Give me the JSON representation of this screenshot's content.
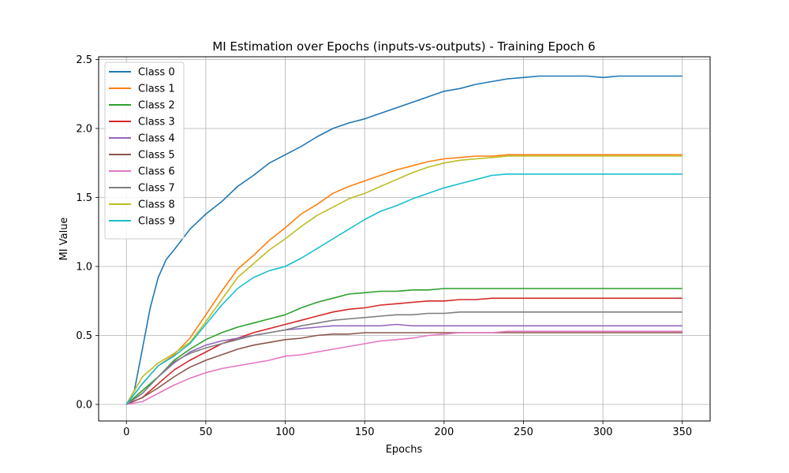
{
  "chart_data": {
    "type": "line",
    "title": "MI Estimation over Epochs (inputs-vs-outputs) - Training Epoch 6",
    "xlabel": "Epochs",
    "ylabel": "MI Value",
    "xlim": [
      -17.5,
      367.5
    ],
    "ylim": [
      -0.12,
      2.52
    ],
    "xticks": [
      0,
      50,
      100,
      150,
      200,
      250,
      300,
      350
    ],
    "yticks": [
      0.0,
      0.5,
      1.0,
      1.5,
      2.0,
      2.5
    ],
    "xtick_labels": [
      "0",
      "50",
      "100",
      "150",
      "200",
      "250",
      "300",
      "350"
    ],
    "ytick_labels": [
      "0.0",
      "0.5",
      "1.0",
      "1.5",
      "2.0",
      "2.5"
    ],
    "grid": true,
    "legend_position": "upper-left",
    "series": [
      {
        "name": "Class 0",
        "color": "#1f77b4",
        "x": [
          0,
          5,
          10,
          15,
          20,
          25,
          30,
          40,
          50,
          60,
          70,
          80,
          90,
          100,
          110,
          120,
          130,
          140,
          150,
          160,
          170,
          180,
          190,
          200,
          210,
          220,
          230,
          240,
          250,
          260,
          270,
          280,
          290,
          300,
          310,
          320,
          330,
          340,
          350
        ],
        "y": [
          0,
          0.1,
          0.4,
          0.7,
          0.92,
          1.05,
          1.12,
          1.27,
          1.38,
          1.47,
          1.58,
          1.66,
          1.75,
          1.81,
          1.87,
          1.94,
          2.0,
          2.04,
          2.07,
          2.11,
          2.15,
          2.19,
          2.23,
          2.27,
          2.29,
          2.32,
          2.34,
          2.36,
          2.37,
          2.38,
          2.38,
          2.38,
          2.38,
          2.37,
          2.38,
          2.38,
          2.38,
          2.38,
          2.38
        ]
      },
      {
        "name": "Class 1",
        "color": "#ff7f0e",
        "x": [
          0,
          10,
          20,
          30,
          40,
          50,
          60,
          70,
          80,
          90,
          100,
          110,
          120,
          130,
          140,
          150,
          160,
          170,
          180,
          190,
          200,
          210,
          220,
          230,
          240,
          250,
          260,
          270,
          280,
          290,
          300,
          310,
          320,
          330,
          340,
          350
        ],
        "y": [
          0,
          0.15,
          0.28,
          0.36,
          0.48,
          0.65,
          0.82,
          0.98,
          1.08,
          1.19,
          1.28,
          1.38,
          1.45,
          1.53,
          1.58,
          1.62,
          1.66,
          1.7,
          1.73,
          1.76,
          1.78,
          1.79,
          1.8,
          1.8,
          1.81,
          1.81,
          1.81,
          1.81,
          1.81,
          1.81,
          1.81,
          1.81,
          1.81,
          1.81,
          1.81,
          1.81
        ]
      },
      {
        "name": "Class 2",
        "color": "#2ca02c",
        "x": [
          0,
          10,
          20,
          30,
          40,
          50,
          60,
          70,
          80,
          90,
          100,
          110,
          120,
          130,
          140,
          150,
          160,
          170,
          180,
          190,
          200,
          210,
          220,
          230,
          240,
          250,
          260,
          270,
          280,
          290,
          300,
          310,
          320,
          330,
          340,
          350
        ],
        "y": [
          0,
          0.1,
          0.2,
          0.32,
          0.4,
          0.47,
          0.52,
          0.56,
          0.59,
          0.62,
          0.65,
          0.7,
          0.74,
          0.77,
          0.8,
          0.81,
          0.82,
          0.82,
          0.83,
          0.83,
          0.84,
          0.84,
          0.84,
          0.84,
          0.84,
          0.84,
          0.84,
          0.84,
          0.84,
          0.84,
          0.84,
          0.84,
          0.84,
          0.84,
          0.84,
          0.84
        ]
      },
      {
        "name": "Class 3",
        "color": "#d62728",
        "x": [
          0,
          10,
          20,
          30,
          40,
          50,
          60,
          70,
          80,
          90,
          100,
          110,
          120,
          130,
          140,
          150,
          160,
          170,
          180,
          190,
          200,
          210,
          220,
          230,
          240,
          250,
          260,
          270,
          280,
          290,
          300,
          310,
          320,
          330,
          340,
          350
        ],
        "y": [
          0,
          0.05,
          0.15,
          0.25,
          0.32,
          0.38,
          0.44,
          0.48,
          0.52,
          0.55,
          0.58,
          0.61,
          0.64,
          0.67,
          0.69,
          0.7,
          0.72,
          0.73,
          0.74,
          0.75,
          0.75,
          0.76,
          0.76,
          0.77,
          0.77,
          0.77,
          0.77,
          0.77,
          0.77,
          0.77,
          0.77,
          0.77,
          0.77,
          0.77,
          0.77,
          0.77
        ]
      },
      {
        "name": "Class 4",
        "color": "#9467bd",
        "x": [
          0,
          10,
          20,
          30,
          40,
          50,
          60,
          70,
          80,
          90,
          100,
          110,
          120,
          130,
          140,
          150,
          160,
          170,
          180,
          190,
          200,
          210,
          220,
          230,
          240,
          250,
          260,
          270,
          280,
          290,
          300,
          310,
          320,
          330,
          340,
          350
        ],
        "y": [
          0,
          0.08,
          0.2,
          0.3,
          0.38,
          0.43,
          0.46,
          0.48,
          0.5,
          0.52,
          0.54,
          0.55,
          0.56,
          0.57,
          0.57,
          0.57,
          0.57,
          0.58,
          0.57,
          0.57,
          0.57,
          0.57,
          0.57,
          0.57,
          0.57,
          0.57,
          0.57,
          0.57,
          0.57,
          0.57,
          0.57,
          0.57,
          0.57,
          0.57,
          0.57,
          0.57
        ]
      },
      {
        "name": "Class 5",
        "color": "#8c564b",
        "x": [
          0,
          10,
          20,
          30,
          40,
          50,
          60,
          70,
          80,
          90,
          100,
          110,
          120,
          130,
          140,
          150,
          160,
          170,
          180,
          190,
          200,
          210,
          220,
          230,
          240,
          250,
          260,
          270,
          280,
          290,
          300,
          310,
          320,
          330,
          340,
          350
        ],
        "y": [
          0,
          0.05,
          0.12,
          0.2,
          0.27,
          0.32,
          0.36,
          0.4,
          0.43,
          0.45,
          0.47,
          0.48,
          0.5,
          0.51,
          0.51,
          0.52,
          0.52,
          0.52,
          0.52,
          0.52,
          0.52,
          0.52,
          0.52,
          0.52,
          0.52,
          0.52,
          0.52,
          0.52,
          0.52,
          0.52,
          0.52,
          0.52,
          0.52,
          0.52,
          0.52,
          0.52
        ]
      },
      {
        "name": "Class 6",
        "color": "#e377c2",
        "x": [
          0,
          10,
          20,
          30,
          40,
          50,
          60,
          70,
          80,
          90,
          100,
          110,
          120,
          130,
          140,
          150,
          160,
          170,
          180,
          190,
          200,
          210,
          220,
          230,
          240,
          250,
          260,
          270,
          280,
          290,
          300,
          310,
          320,
          330,
          340,
          350
        ],
        "y": [
          0,
          0.02,
          0.08,
          0.14,
          0.19,
          0.23,
          0.26,
          0.28,
          0.3,
          0.32,
          0.35,
          0.36,
          0.38,
          0.4,
          0.42,
          0.44,
          0.46,
          0.47,
          0.48,
          0.5,
          0.51,
          0.52,
          0.52,
          0.52,
          0.53,
          0.53,
          0.53,
          0.53,
          0.53,
          0.53,
          0.53,
          0.53,
          0.53,
          0.53,
          0.53,
          0.53
        ]
      },
      {
        "name": "Class 7",
        "color": "#7f7f7f",
        "x": [
          0,
          10,
          20,
          30,
          40,
          50,
          60,
          70,
          80,
          90,
          100,
          110,
          120,
          130,
          140,
          150,
          160,
          170,
          180,
          190,
          200,
          210,
          220,
          230,
          240,
          250,
          260,
          270,
          280,
          290,
          300,
          310,
          320,
          330,
          340,
          350
        ],
        "y": [
          0,
          0.08,
          0.2,
          0.31,
          0.37,
          0.41,
          0.44,
          0.47,
          0.5,
          0.52,
          0.54,
          0.57,
          0.59,
          0.61,
          0.62,
          0.63,
          0.64,
          0.65,
          0.65,
          0.66,
          0.66,
          0.67,
          0.67,
          0.67,
          0.67,
          0.67,
          0.67,
          0.67,
          0.67,
          0.67,
          0.67,
          0.67,
          0.67,
          0.67,
          0.67,
          0.67
        ]
      },
      {
        "name": "Class 8",
        "color": "#bcbd22",
        "x": [
          0,
          10,
          20,
          30,
          40,
          50,
          60,
          70,
          80,
          90,
          100,
          110,
          120,
          130,
          140,
          150,
          160,
          170,
          180,
          190,
          200,
          210,
          220,
          230,
          240,
          250,
          260,
          270,
          280,
          290,
          300,
          310,
          320,
          330,
          340,
          350
        ],
        "y": [
          0,
          0.2,
          0.3,
          0.37,
          0.45,
          0.6,
          0.76,
          0.92,
          1.02,
          1.12,
          1.2,
          1.29,
          1.37,
          1.43,
          1.49,
          1.53,
          1.58,
          1.63,
          1.68,
          1.72,
          1.75,
          1.77,
          1.78,
          1.79,
          1.8,
          1.8,
          1.8,
          1.8,
          1.8,
          1.8,
          1.8,
          1.8,
          1.8,
          1.8,
          1.8,
          1.8
        ]
      },
      {
        "name": "Class 9",
        "color": "#17becf",
        "x": [
          0,
          10,
          20,
          30,
          40,
          50,
          60,
          70,
          80,
          90,
          100,
          110,
          120,
          130,
          140,
          150,
          160,
          170,
          180,
          190,
          200,
          210,
          220,
          230,
          240,
          250,
          260,
          270,
          280,
          290,
          300,
          310,
          320,
          330,
          340,
          350
        ],
        "y": [
          0,
          0.15,
          0.28,
          0.35,
          0.44,
          0.58,
          0.72,
          0.84,
          0.92,
          0.97,
          1.0,
          1.06,
          1.13,
          1.2,
          1.27,
          1.34,
          1.4,
          1.44,
          1.49,
          1.53,
          1.57,
          1.6,
          1.63,
          1.66,
          1.67,
          1.67,
          1.67,
          1.67,
          1.67,
          1.67,
          1.67,
          1.67,
          1.67,
          1.67,
          1.67,
          1.67
        ]
      }
    ]
  }
}
